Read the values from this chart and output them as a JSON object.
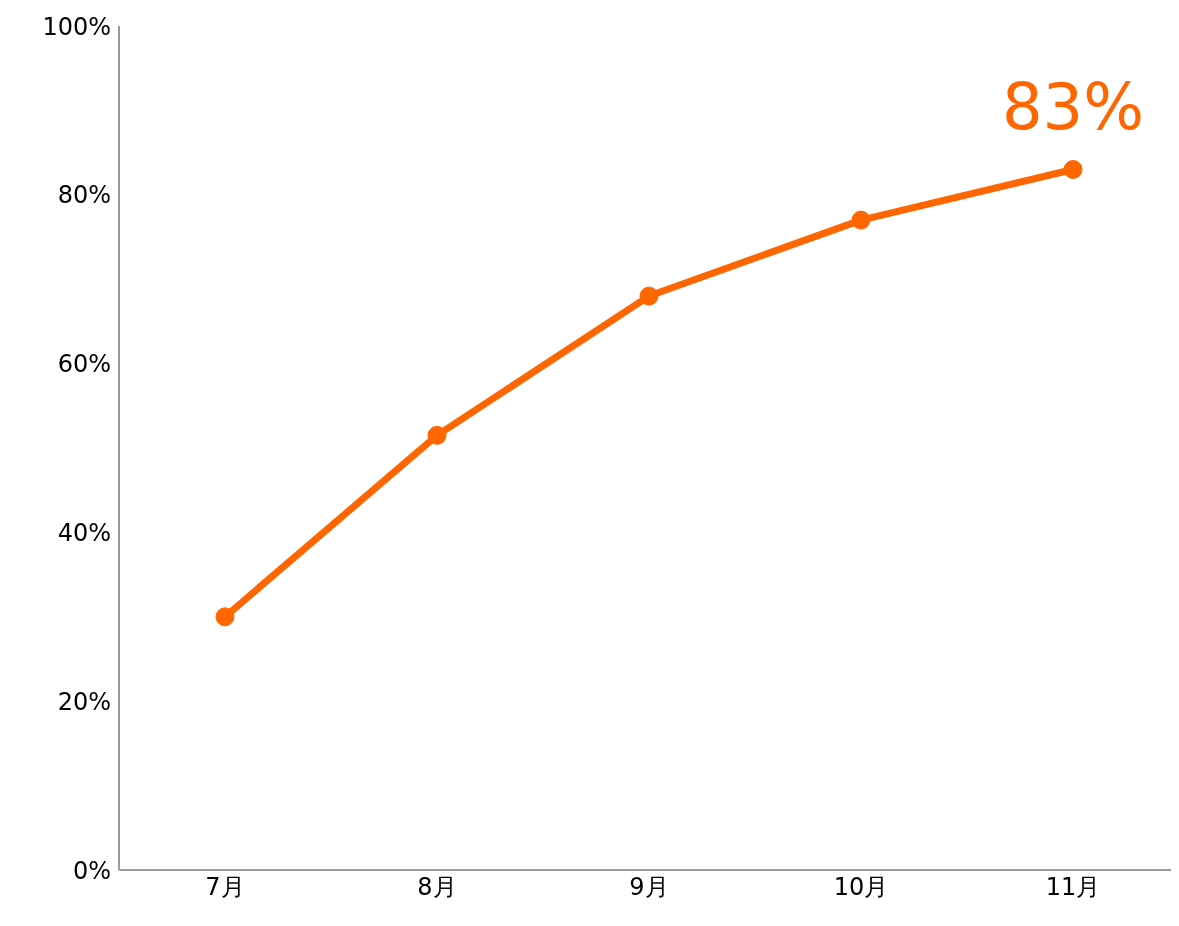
{
  "chart_data": {
    "type": "line",
    "categories": [
      "7月",
      "8月",
      "9月",
      "10月",
      "11月"
    ],
    "series": [
      {
        "color": "#ff6600",
        "values": [
          30,
          51.5,
          68,
          77,
          83
        ],
        "value_labels": [
          null,
          null,
          null,
          null,
          "83%"
        ]
      }
    ],
    "ylim": [
      0,
      100
    ],
    "yticks": [
      {
        "value": 0,
        "label": "0%"
      },
      {
        "value": 20,
        "label": "20%"
      },
      {
        "value": 40,
        "label": "40%"
      },
      {
        "value": 60,
        "label": "60%"
      },
      {
        "value": 80,
        "label": "80%"
      },
      {
        "value": 100,
        "label": "100%"
      }
    ],
    "grid": false,
    "marker": "circle",
    "line_style": "solid"
  }
}
